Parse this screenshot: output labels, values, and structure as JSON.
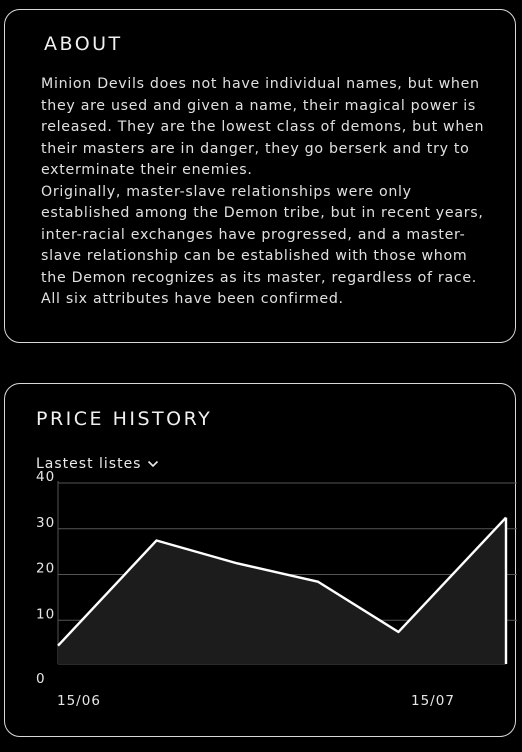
{
  "about": {
    "title": "ABOUT",
    "paragraphs": [
      "Minion Devils does not have individual names, but when they are used and given a name, their magical power is released. They are the lowest class of demons, but when their masters are in danger, they go berserk and try to exterminate their enemies.",
      "Originally, master-slave relationships were only established among the Demon tribe, but in recent years, inter-racial exchanges have progressed, and a master-slave relationship can be established with those whom the Demon recognizes as its master, regardless of race. All six attributes have been confirmed."
    ]
  },
  "price_history": {
    "title": "PRICE HISTORY",
    "filter_label": "Lastest listes",
    "filter_icon": "chevron-down-icon"
  },
  "chart_data": {
    "type": "area",
    "title": "",
    "xlabel": "",
    "ylabel": "",
    "ylim": [
      0,
      40
    ],
    "yticks": [
      "0",
      "10",
      "20",
      "30",
      "40"
    ],
    "x_tick_labels": [
      "15/06",
      "15/07"
    ],
    "x": [
      0,
      0.22,
      0.4,
      0.58,
      0.76,
      1.0
    ],
    "values": [
      4,
      27,
      22,
      18,
      7,
      32
    ],
    "grid": true,
    "line_color": "#ffffff",
    "fill_color": "#1c1c1c",
    "grid_color": "#555555"
  }
}
